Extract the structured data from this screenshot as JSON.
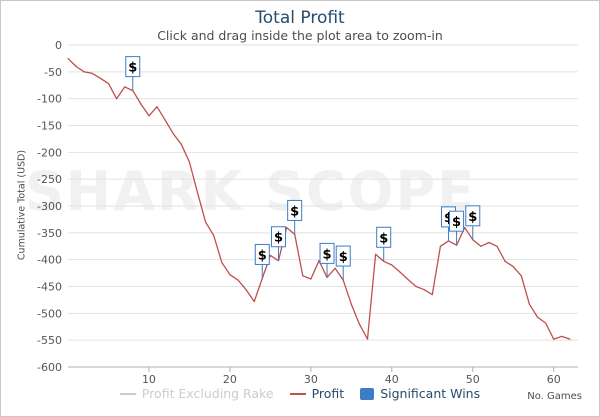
{
  "chart_data": {
    "type": "line",
    "title": "Total Profit",
    "subtitle": "Click and drag inside the plot area to zoom-in",
    "ylabel": "Cumulative Total (USD)",
    "xlabel": "No. Games",
    "xlim": [
      0,
      63
    ],
    "ylim": [
      -600,
      0
    ],
    "x_ticks": [
      10,
      20,
      30,
      40,
      50,
      60
    ],
    "y_ticks": [
      0,
      -50,
      -100,
      -150,
      -200,
      -250,
      -300,
      -350,
      -400,
      -450,
      -500,
      -550,
      -600
    ],
    "grid": true,
    "legend_position": "bottom",
    "series": [
      {
        "name": "Profit Excluding Rake",
        "color": "#cccccc",
        "hidden": true,
        "values": []
      },
      {
        "name": "Profit",
        "color": "#c0504d",
        "x": [
          0,
          1,
          2,
          3,
          4,
          5,
          6,
          7,
          8,
          9,
          10,
          11,
          12,
          13,
          14,
          15,
          16,
          17,
          18,
          19,
          20,
          21,
          22,
          23,
          24,
          25,
          26,
          27,
          28,
          29,
          30,
          31,
          32,
          33,
          34,
          35,
          36,
          37,
          38,
          39,
          40,
          41,
          42,
          43,
          44,
          45,
          46,
          47,
          48,
          49,
          50,
          51,
          52,
          53,
          54,
          55,
          56,
          57,
          58,
          59,
          60,
          61,
          62
        ],
        "values": [
          -25,
          -40,
          -50,
          -53,
          -62,
          -72,
          -100,
          -78,
          -85,
          -110,
          -132,
          -115,
          -140,
          -165,
          -185,
          -218,
          -275,
          -330,
          -355,
          -405,
          -428,
          -438,
          -456,
          -478,
          -435,
          -392,
          -402,
          -340,
          -353,
          -430,
          -436,
          -402,
          -433,
          -416,
          -438,
          -483,
          -520,
          -548,
          -390,
          -403,
          -410,
          -423,
          -437,
          -450,
          -456,
          -465,
          -375,
          -365,
          -373,
          -340,
          -363,
          -375,
          -368,
          -375,
          -403,
          -413,
          -430,
          -483,
          -507,
          -518,
          -548,
          -543,
          -548
        ]
      }
    ],
    "significant_wins": {
      "name": "Significant Wins",
      "color": "#3d7cc9",
      "symbol": "$",
      "x": [
        8,
        24,
        26,
        28,
        32,
        34,
        39,
        47,
        48,
        50
      ]
    }
  },
  "watermark": "SHARK SCOPE"
}
